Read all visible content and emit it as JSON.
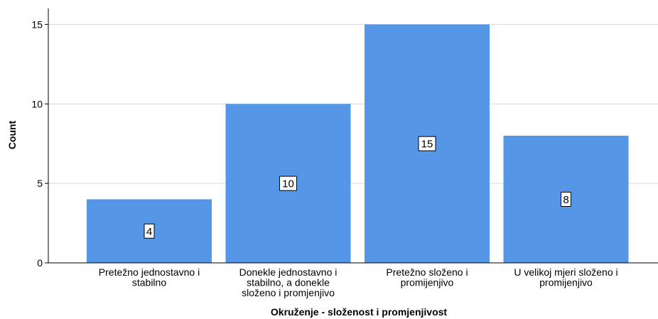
{
  "chart_data": {
    "type": "bar",
    "xlabel": "Okruženje - složenost i promjenjivost",
    "ylabel": "Count",
    "ylim": [
      0,
      16
    ],
    "yticks": [
      0,
      5,
      10,
      15
    ],
    "grid": true,
    "categories": [
      [
        "Pretežno jednostavno i",
        "stabilno"
      ],
      [
        "Donekle jednostavno i",
        "stabilno, a donekle",
        "složeno i promjenjivo"
      ],
      [
        "Pretežno složeno i",
        "promijenjivo"
      ],
      [
        "U velikoj mjeri složeno i",
        "promijenjivo"
      ]
    ],
    "values": [
      4,
      10,
      15,
      8
    ],
    "data_labels": [
      "4",
      "10",
      "15",
      "8"
    ]
  },
  "colors": {
    "bar": "#5596e6",
    "grid": "#d9d9d9",
    "axis": "#000000",
    "label_box": "#ffffff"
  }
}
